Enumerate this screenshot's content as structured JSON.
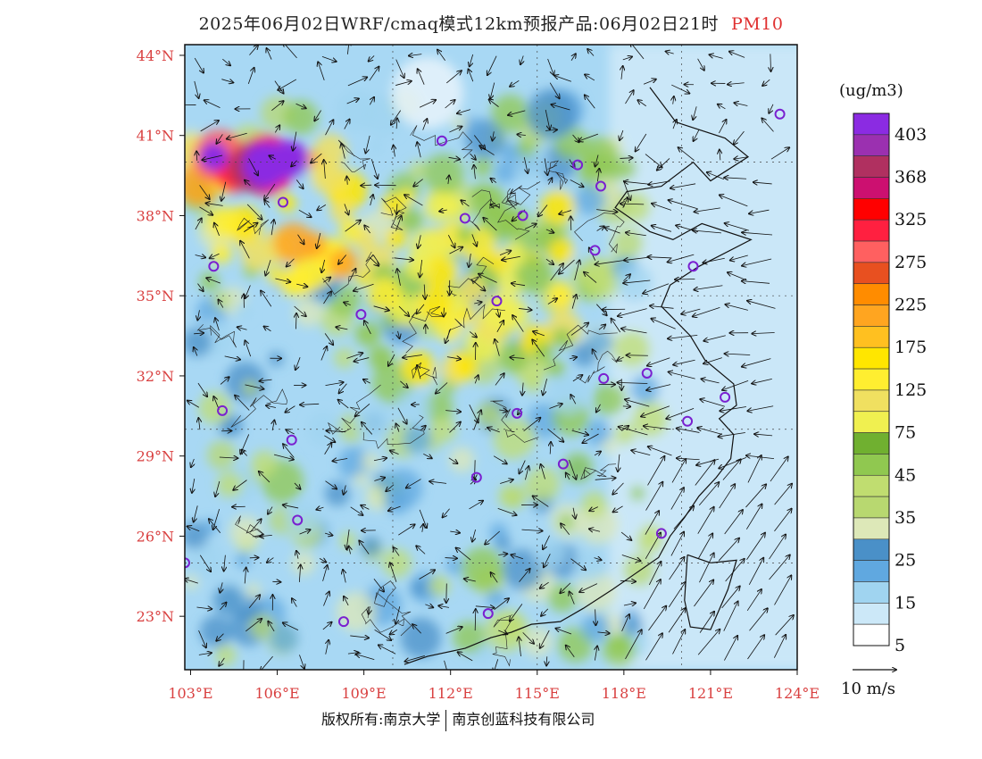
{
  "title": {
    "text": "2025年06月02日WRF/cmaq模式12km预报产品:06月02日21时",
    "species": "PM10"
  },
  "map": {
    "lon_ticks": [
      "103°E",
      "106°E",
      "109°E",
      "112°E",
      "115°E",
      "118°E",
      "121°E",
      "124°E"
    ],
    "lat_ticks": [
      "44°N",
      "41°N",
      "38°N",
      "35°N",
      "32°N",
      "29°N",
      "26°N",
      "23°N"
    ],
    "lon_range": [
      102.8,
      124
    ],
    "lat_range": [
      21.0,
      44.4
    ]
  },
  "colorbar": {
    "unit": "(ug/m3)",
    "labels": [
      "403",
      "368",
      "325",
      "275",
      "225",
      "175",
      "125",
      "75",
      "45",
      "35",
      "25",
      "15",
      "5"
    ],
    "colors": [
      "#8b2be2",
      "#9b30b0",
      "#b03060",
      "#cc1070",
      "#ff0000",
      "#ff2040",
      "#ff6060",
      "#e85020",
      "#ff8c00",
      "#ffa520",
      "#ffc020",
      "#ffe600",
      "#ffee30",
      "#f0e060",
      "#f0f050",
      "#70b030",
      "#90c850",
      "#c0dd70",
      "#b8d870",
      "#dde8b8",
      "#4a90c8",
      "#60a8e0",
      "#a0d4f0",
      "#cce8f8",
      "#ffffff"
    ]
  },
  "wind_reference": {
    "label": "10 m/s"
  },
  "copyright": {
    "left": "版权所有:南京大学",
    "right": "南京创蓝科技有限公司"
  }
}
